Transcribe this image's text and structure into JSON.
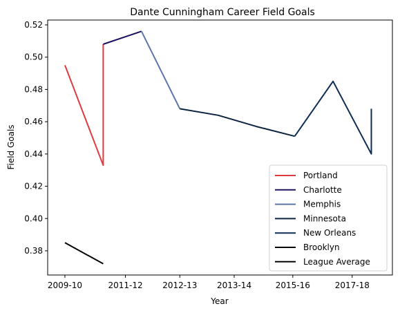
{
  "chart_data": {
    "type": "line",
    "title": "Dante Cunningham Career Field Goals",
    "xlabel": "Year",
    "ylabel": "Field Goals",
    "x_ticks": [
      "2009-10",
      "2011-12",
      "2012-13",
      "2013-14",
      "2015-16",
      "2017-18"
    ],
    "ylim": [
      0.365,
      0.523
    ],
    "y_ticks": [
      0.38,
      0.4,
      0.42,
      0.44,
      0.46,
      0.48,
      0.5,
      0.52
    ],
    "grid": false,
    "legend_position": "lower right",
    "series": [
      {
        "name": "Portland",
        "color": "#E03A3E",
        "points": [
          [
            2009.0,
            0.495
          ],
          [
            2010.0,
            0.433
          ],
          [
            2010.0,
            0.508
          ]
        ]
      },
      {
        "name": "Charlotte",
        "color": "#1D1160",
        "points": [
          [
            2010.0,
            0.508
          ],
          [
            2011.0,
            0.516
          ]
        ]
      },
      {
        "name": "Memphis",
        "color": "#5D76A9",
        "points": [
          [
            2011.0,
            0.516
          ],
          [
            2012.0,
            0.468
          ]
        ]
      },
      {
        "name": "Minnesota",
        "color": "#0C2340",
        "points": [
          [
            2012.0,
            0.468
          ],
          [
            2013.0,
            0.464
          ],
          [
            2014.0,
            0.457
          ],
          [
            2015.0,
            0.451
          ]
        ]
      },
      {
        "name": "New Orleans",
        "color": "#0C2C56",
        "points": [
          [
            2015.0,
            0.451
          ],
          [
            2016.0,
            0.485
          ],
          [
            2017.0,
            0.44
          ],
          [
            2017.0,
            0.468
          ]
        ]
      },
      {
        "name": "Brooklyn",
        "color": "#000000",
        "points": []
      },
      {
        "name": "League Average",
        "color": "#000000",
        "points": [
          [
            2009.0,
            0.385
          ],
          [
            2010.0,
            0.372
          ]
        ]
      }
    ]
  }
}
